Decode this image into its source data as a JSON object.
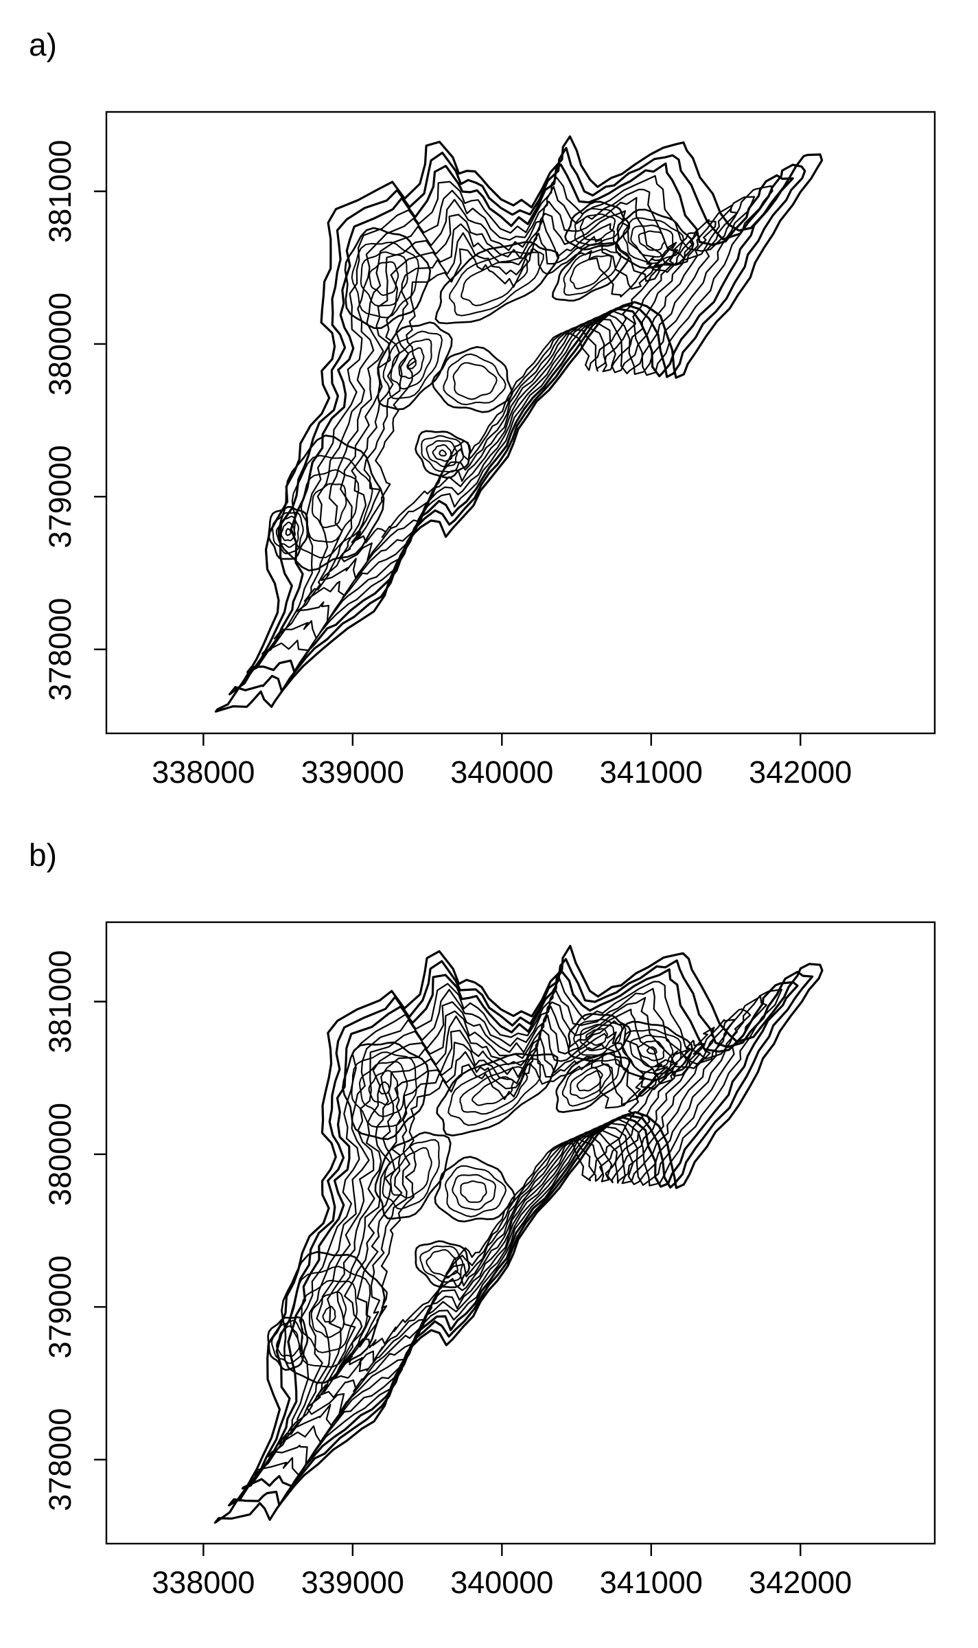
{
  "chart_data": [
    {
      "type": "contour",
      "panel_label": "a)",
      "title": "",
      "xlabel": "",
      "ylabel": "",
      "xlim": [
        337350,
        342900
      ],
      "ylim": [
        377450,
        381520
      ],
      "x_ticks": [
        "338000",
        "339000",
        "340000",
        "341000",
        "342000"
      ],
      "y_ticks": [
        "378000",
        "379000",
        "380000",
        "381000"
      ],
      "grid": false,
      "legend": "none",
      "line_color": "#000000",
      "contour_levels": 10
    },
    {
      "type": "contour",
      "panel_label": "b)",
      "title": "",
      "xlabel": "",
      "ylabel": "",
      "xlim": [
        337350,
        342900
      ],
      "ylim": [
        377450,
        381520
      ],
      "x_ticks": [
        "338000",
        "339000",
        "340000",
        "341000",
        "342000"
      ],
      "y_ticks": [
        "378000",
        "379000",
        "380000",
        "381000"
      ],
      "grid": false,
      "legend": "none",
      "line_color": "#000000",
      "contour_levels": 12
    }
  ]
}
